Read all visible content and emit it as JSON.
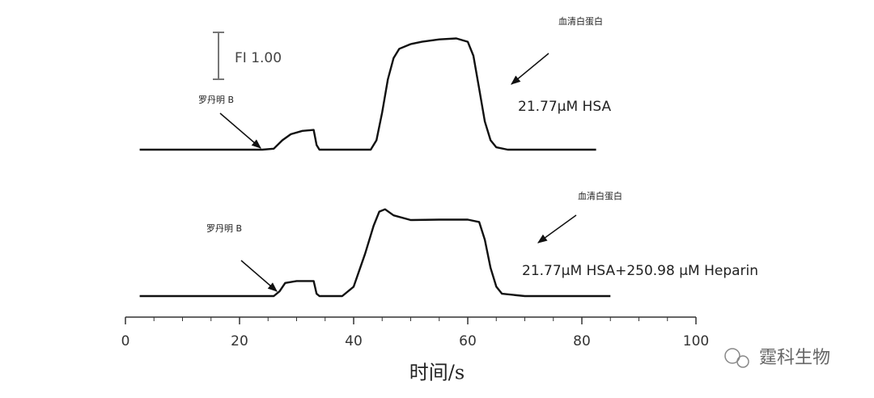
{
  "chart_data": {
    "type": "line",
    "xlabel": "时间/s",
    "xlim": [
      0,
      100
    ],
    "xticks": [
      0,
      20,
      40,
      60,
      80,
      100
    ],
    "xminorticks": [
      5,
      10,
      15,
      25,
      30,
      35,
      45,
      50,
      55,
      65,
      70,
      75,
      85,
      90,
      95
    ],
    "scale_bar": {
      "value": 1.0,
      "label": "FI 1.00"
    },
    "series": [
      {
        "name": "21.77μM HSA",
        "color": "#111111",
        "annotations": [
          "血清白蛋白",
          "罗丹明 B"
        ],
        "x": [
          2.5,
          24,
          26,
          27.5,
          29,
          31,
          33,
          33.5,
          34,
          43,
          44,
          45,
          46,
          47,
          48,
          50,
          52,
          55,
          58,
          60,
          61,
          62,
          63,
          64,
          65,
          67,
          82.5
        ],
        "values": [
          0,
          0,
          0.02,
          0.2,
          0.33,
          0.4,
          0.42,
          0.1,
          0,
          0,
          0.2,
          0.8,
          1.5,
          1.95,
          2.15,
          2.25,
          2.3,
          2.35,
          2.37,
          2.3,
          2.0,
          1.3,
          0.6,
          0.2,
          0.05,
          0,
          0
        ]
      },
      {
        "name": "21.77μM HSA+250.98 μM Heparin",
        "color": "#111111",
        "annotations": [
          "血清白蛋白",
          "罗丹明 B"
        ],
        "x": [
          2.5,
          26,
          27,
          28,
          30,
          33,
          33.5,
          34,
          38,
          40,
          42,
          43.5,
          44.5,
          45.5,
          47,
          50,
          55,
          60,
          62,
          63,
          64,
          65,
          66,
          70,
          85
        ],
        "values": [
          0,
          0,
          0.1,
          0.28,
          0.32,
          0.32,
          0.05,
          0,
          0,
          0.2,
          0.9,
          1.5,
          1.8,
          1.85,
          1.72,
          1.62,
          1.63,
          1.63,
          1.58,
          1.2,
          0.6,
          0.2,
          0.05,
          0,
          0
        ]
      }
    ],
    "watermark": "霆科生物"
  }
}
